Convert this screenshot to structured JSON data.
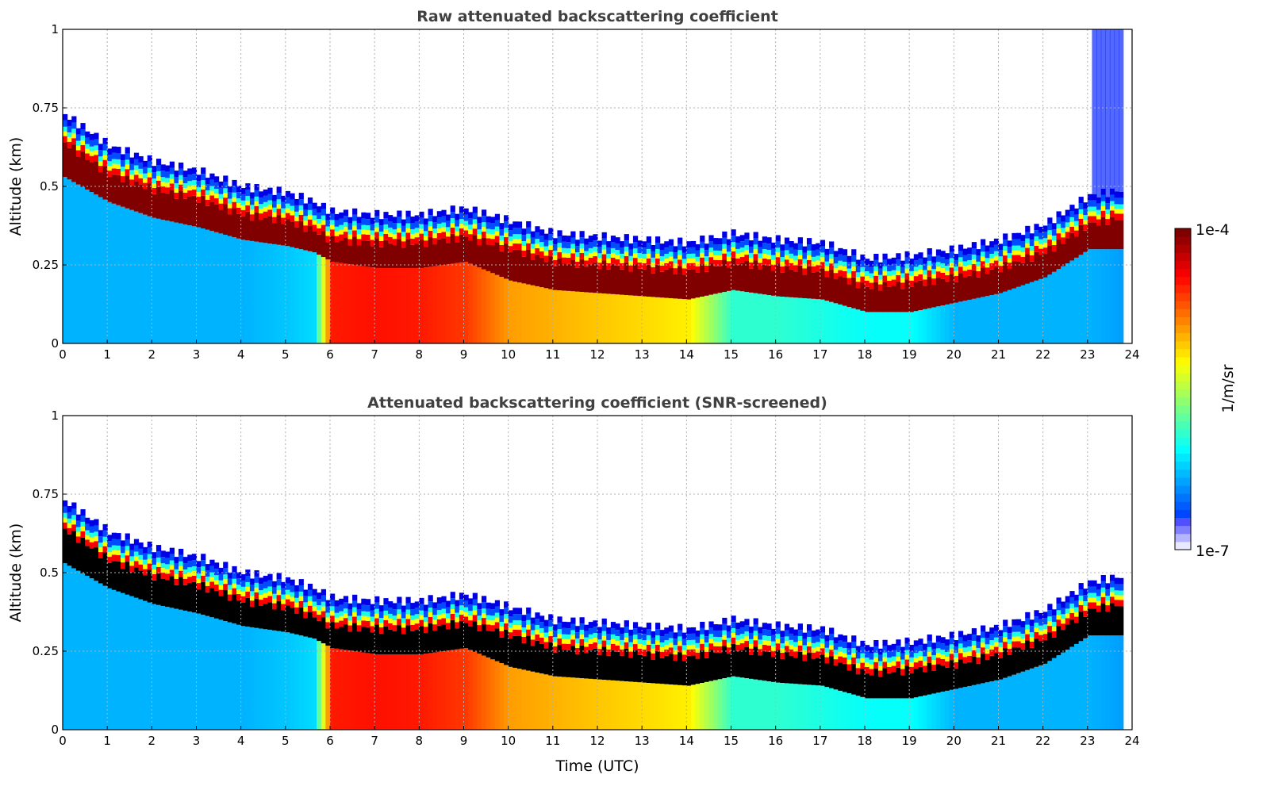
{
  "chart_data": {
    "type": "heatmap",
    "panels": [
      {
        "title": "Raw attenuated backscattering coefficient",
        "ylabel": "Altitude (km)",
        "layer_style": "raw"
      },
      {
        "title": "Attenuated backscattering coefficient (SNR-screened)",
        "ylabel": "Altitude (km)",
        "layer_style": "screened"
      }
    ],
    "xlabel": "Time (UTC)",
    "xlim": [
      0,
      24
    ],
    "ylim": [
      0,
      1
    ],
    "xticks": [
      "0",
      "1",
      "2",
      "3",
      "4",
      "5",
      "6",
      "7",
      "8",
      "9",
      "10",
      "11",
      "12",
      "13",
      "14",
      "15",
      "16",
      "17",
      "18",
      "19",
      "20",
      "21",
      "22",
      "23",
      "24"
    ],
    "yticks": [
      "0",
      "0.25",
      "0.5",
      "0.75",
      "1"
    ],
    "grid": true,
    "colorbar": {
      "label": "1/m/sr",
      "max_label": "1e-4",
      "min_label": "1e-7",
      "scale": "log",
      "colormap": "jet"
    },
    "profile": {
      "time_h": [
        0,
        1,
        2,
        3,
        4,
        5,
        5.6,
        6,
        7,
        8,
        9,
        10,
        11,
        12,
        13,
        14,
        15,
        16,
        17,
        18,
        19,
        20,
        21,
        22,
        23,
        23.75
      ],
      "layer_top_km": [
        0.64,
        0.54,
        0.49,
        0.46,
        0.41,
        0.39,
        0.36,
        0.33,
        0.32,
        0.32,
        0.34,
        0.3,
        0.26,
        0.25,
        0.24,
        0.23,
        0.26,
        0.24,
        0.23,
        0.18,
        0.19,
        0.21,
        0.24,
        0.29,
        0.38,
        0.4
      ],
      "layer_bottom_km": [
        0.53,
        0.45,
        0.4,
        0.37,
        0.33,
        0.31,
        0.29,
        0.26,
        0.24,
        0.24,
        0.26,
        0.2,
        0.17,
        0.16,
        0.15,
        0.14,
        0.17,
        0.15,
        0.14,
        0.1,
        0.1,
        0.13,
        0.16,
        0.21,
        0.3,
        0.3
      ],
      "below_layer_level": [
        0.3,
        0.3,
        0.3,
        0.3,
        0.3,
        0.32,
        0.34,
        0.85,
        0.86,
        0.85,
        0.82,
        0.72,
        0.7,
        0.68,
        0.66,
        0.64,
        0.42,
        0.42,
        0.4,
        0.38,
        0.38,
        0.3,
        0.3,
        0.3,
        0.3,
        0.28
      ]
    }
  }
}
